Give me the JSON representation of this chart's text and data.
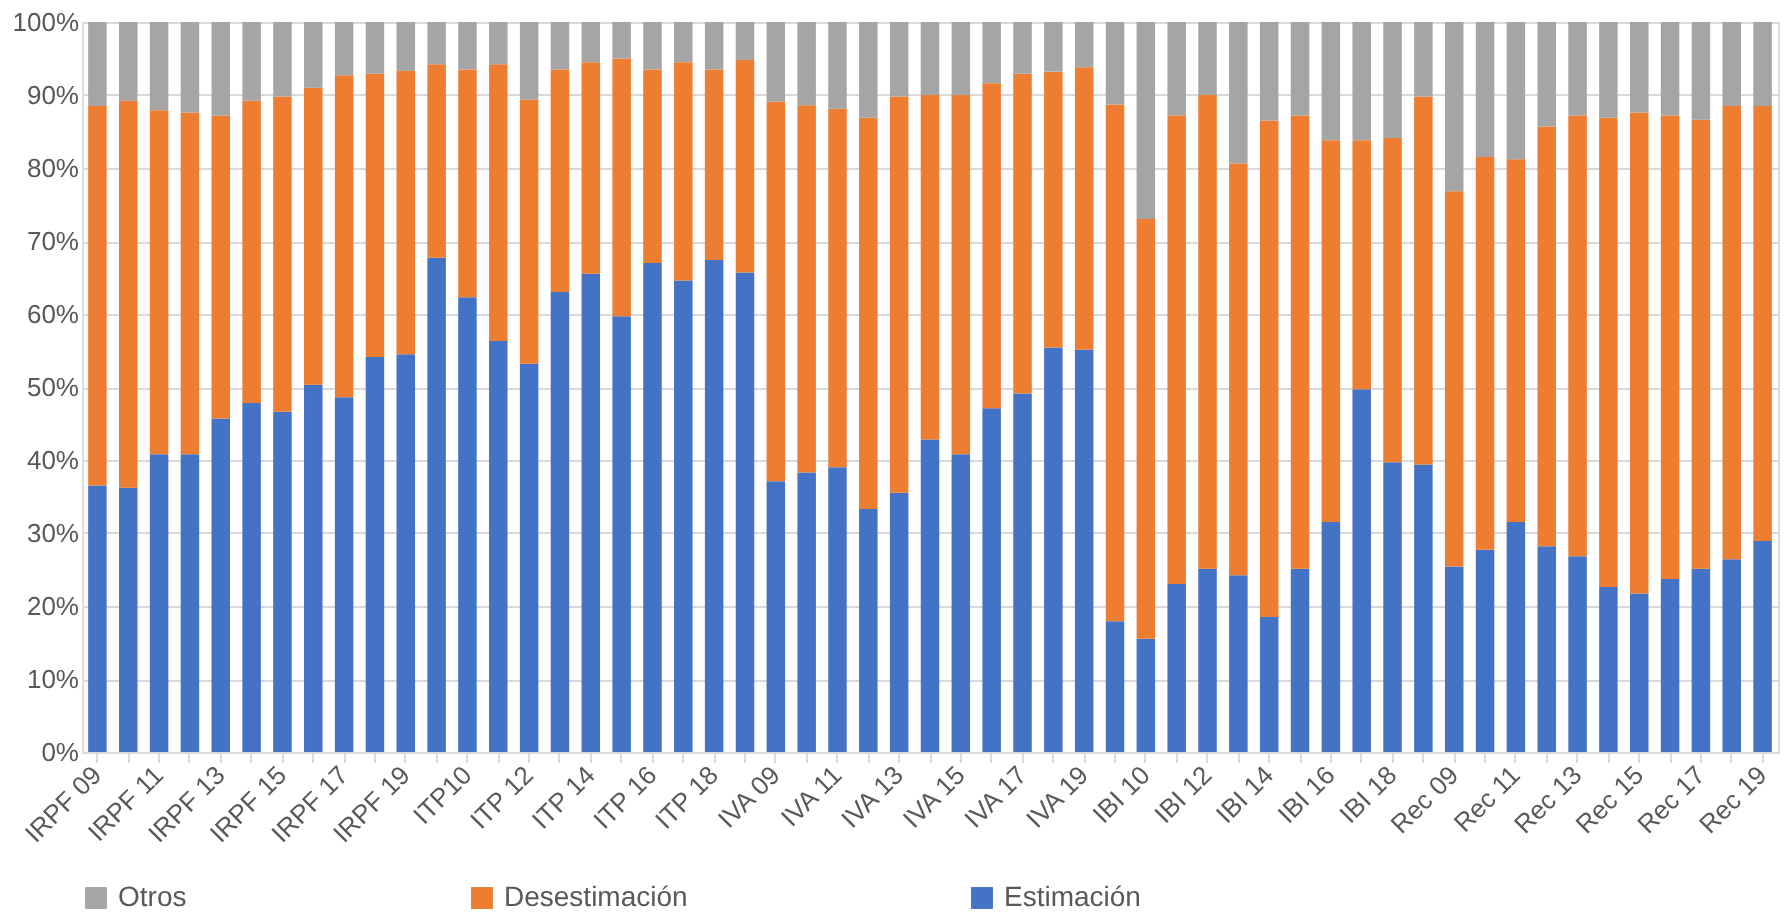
{
  "chart_data": {
    "type": "bar",
    "stacked": true,
    "categories": [
      "IRPF 09",
      null,
      "IRPF 11",
      null,
      "IRPF 13",
      null,
      "IRPF 15",
      null,
      "IRPF 17",
      null,
      "IRPF 19",
      null,
      "ITP10",
      null,
      "ITP 12",
      null,
      "ITP 14",
      null,
      "ITP 16",
      null,
      "ITP 18",
      null,
      "IVA 09",
      null,
      "IVA 11",
      null,
      "IVA 13",
      null,
      "IVA 15",
      null,
      "IVA 17",
      null,
      "IVA 19",
      null,
      "IBI 10",
      null,
      "IBI 12",
      null,
      "IBI 14",
      null,
      "IBI 16",
      null,
      "IBI 18",
      null,
      "Rec 09",
      null,
      "Rec 11",
      null,
      "Rec 13",
      null,
      "Rec 15",
      null,
      "Rec 17",
      null,
      "Rec 19"
    ],
    "series": [
      {
        "name": "Estimación",
        "color": "#4472c4",
        "values": [
          36.5,
          36.2,
          40.8,
          40.8,
          45.7,
          47.8,
          46.6,
          50.3,
          48.6,
          54.1,
          54.5,
          67.7,
          62.3,
          56.3,
          53.2,
          63.0,
          65.5,
          59.7,
          67.0,
          64.6,
          67.4,
          65.7,
          37.1,
          38.3,
          39.0,
          33.3,
          35.5,
          42.8,
          40.8,
          47.1,
          49.1,
          55.4,
          55.1,
          17.9,
          15.5,
          23.0,
          25.1,
          24.2,
          18.5,
          25.1,
          31.5,
          49.7,
          39.7,
          39.4,
          25.4,
          27.7,
          31.5,
          28.2,
          26.8,
          22.6,
          21.7,
          23.7,
          25.1,
          26.4,
          28.9
        ]
      },
      {
        "name": "Desestimación",
        "color": "#ed7d31",
        "values": [
          52.0,
          53.0,
          47.1,
          46.8,
          41.5,
          41.4,
          43.2,
          40.7,
          44.1,
          38.8,
          38.8,
          26.5,
          31.2,
          37.9,
          36.2,
          30.5,
          29.0,
          35.3,
          26.5,
          29.9,
          26.1,
          29.1,
          52.0,
          50.3,
          49.1,
          53.6,
          54.3,
          47.2,
          49.2,
          44.5,
          43.8,
          37.8,
          38.7,
          70.8,
          57.5,
          64.2,
          64.9,
          56.4,
          68.0,
          62.1,
          52.3,
          34.1,
          44.4,
          50.4,
          51.4,
          53.8,
          49.7,
          57.5,
          60.4,
          64.3,
          65.9,
          63.5,
          61.5,
          62.1,
          59.6
        ]
      },
      {
        "name": "Otros",
        "color": "#a5a5a5",
        "values": [
          11.5,
          10.8,
          12.1,
          12.4,
          12.8,
          10.8,
          10.2,
          9.0,
          7.3,
          7.1,
          6.7,
          5.8,
          6.5,
          5.8,
          10.6,
          6.5,
          5.5,
          5.0,
          6.5,
          5.5,
          6.5,
          5.2,
          10.9,
          11.4,
          11.9,
          13.1,
          10.2,
          10.0,
          10.0,
          8.4,
          7.1,
          6.8,
          6.2,
          11.3,
          27.0,
          12.8,
          10.0,
          19.4,
          13.5,
          12.8,
          16.2,
          16.2,
          15.9,
          10.2,
          23.2,
          18.5,
          18.8,
          14.3,
          12.8,
          13.1,
          12.4,
          12.8,
          13.4,
          11.5,
          11.5
        ]
      }
    ],
    "ylim": [
      0,
      100
    ],
    "yticks": [
      {
        "value": 0,
        "label": "0%"
      },
      {
        "value": 10,
        "label": "10%"
      },
      {
        "value": 20,
        "label": "20%"
      },
      {
        "value": 30,
        "label": "30%"
      },
      {
        "value": 40,
        "label": "40%"
      },
      {
        "value": 50,
        "label": "50%"
      },
      {
        "value": 60,
        "label": "60%"
      },
      {
        "value": 70,
        "label": "70%"
      },
      {
        "value": 80,
        "label": "80%"
      },
      {
        "value": 90,
        "label": "90%"
      },
      {
        "value": 100,
        "label": "100%"
      }
    ],
    "grid": "y",
    "legend": "bottom"
  }
}
